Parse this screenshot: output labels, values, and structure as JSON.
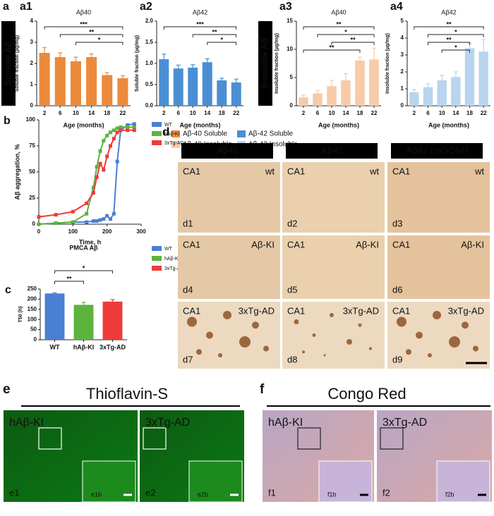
{
  "panel_a": {
    "label": "a",
    "soluble_label": "Soluble Aβ",
    "insoluble_label": "Insoluble Aβ",
    "legend": [
      {
        "name": "Aβ-40 Soluble",
        "color": "#ec8a3c"
      },
      {
        "name": "Aβ-42 Soluble",
        "color": "#4a8fd4"
      },
      {
        "name": "Aβ-40 Insoluble",
        "color": "#f7cba9"
      },
      {
        "name": "Aβ-42 Insoluble",
        "color": "#b8d4ee"
      }
    ]
  },
  "chart_data": [
    {
      "type": "bar",
      "panel": "a1",
      "title": "Aβ40",
      "ylabel": "Soluble fraction (µg/mg)",
      "xlabel": "Age (months)",
      "categories": [
        "2",
        "6",
        "10",
        "14",
        "18",
        "22"
      ],
      "values": [
        2.5,
        2.3,
        2.1,
        2.3,
        1.45,
        1.3
      ],
      "errors": [
        0.25,
        0.2,
        0.2,
        0.15,
        0.12,
        0.12
      ],
      "color": "#ec8a3c",
      "ylim": [
        0,
        4
      ],
      "yticks": [
        0,
        1,
        2,
        3,
        4
      ],
      "annotations": [
        {
          "text": "***",
          "between": [
            "2",
            "22"
          ]
        },
        {
          "text": "**",
          "between": [
            "6",
            "22"
          ]
        },
        {
          "text": "*",
          "between": [
            "10",
            "22"
          ]
        }
      ]
    },
    {
      "type": "bar",
      "panel": "a2",
      "title": "Aβ42",
      "ylabel": "Soluble fraction (µg/mg)",
      "xlabel": "Age (months)",
      "categories": [
        "2",
        "6",
        "10",
        "14",
        "18",
        "22"
      ],
      "values": [
        1.1,
        0.88,
        0.9,
        1.03,
        0.6,
        0.55
      ],
      "errors": [
        0.12,
        0.08,
        0.07,
        0.08,
        0.05,
        0.08
      ],
      "color": "#4a8fd4",
      "ylim": [
        0,
        2
      ],
      "yticks": [
        {
          "value": 0,
          "label": "0.0"
        },
        0.5,
        {
          "value": 1,
          "label": "1.0"
        },
        1.5,
        {
          "value": 2,
          "label": "2.0"
        }
      ],
      "annotations": [
        {
          "text": "***",
          "between": [
            "2",
            "22"
          ]
        },
        {
          "text": "**",
          "between": [
            "10",
            "22"
          ]
        },
        {
          "text": "*",
          "between": [
            "14",
            "22"
          ]
        }
      ]
    },
    {
      "type": "bar",
      "panel": "a3",
      "title": "Aβ40",
      "ylabel": "Insoluble fraction (µg/mg)",
      "xlabel": "Age (months)",
      "categories": [
        "2",
        "6",
        "10",
        "14",
        "18",
        "22"
      ],
      "values": [
        1.5,
        2.2,
        3.5,
        4.5,
        8,
        8.2
      ],
      "errors": [
        0.4,
        0.5,
        1,
        1.2,
        0.6,
        2
      ],
      "color": "#f7cba9",
      "ylim": [
        0,
        15
      ],
      "yticks": [
        0,
        5,
        10,
        15
      ],
      "annotations": [
        {
          "text": "**",
          "between": [
            "2",
            "22"
          ]
        },
        {
          "text": "*",
          "between": [
            "6",
            "22"
          ]
        },
        {
          "text": "**",
          "between": [
            "10",
            "22"
          ]
        },
        {
          "text": "**",
          "between": [
            "2",
            "18"
          ]
        }
      ]
    },
    {
      "type": "bar",
      "panel": "a4",
      "title": "Aβ42",
      "ylabel": "Insoluble fraction (µg/mg)",
      "xlabel": "Age (months)",
      "categories": [
        "2",
        "6",
        "10",
        "14",
        "18",
        "22"
      ],
      "values": [
        0.8,
        1.1,
        1.5,
        1.7,
        3.4,
        3.2
      ],
      "errors": [
        0.15,
        0.2,
        0.3,
        0.3,
        0.3,
        0.7
      ],
      "color": "#b8d4ee",
      "ylim": [
        0,
        5
      ],
      "yticks": [
        0,
        1,
        2,
        3,
        4,
        5
      ],
      "annotations": [
        {
          "text": "**",
          "between": [
            "2",
            "22"
          ]
        },
        {
          "text": "*",
          "between": [
            "6",
            "22"
          ]
        },
        {
          "text": "**",
          "between": [
            "6",
            "18"
          ]
        },
        {
          "text": "*",
          "between": [
            "10",
            "18"
          ]
        }
      ]
    },
    {
      "type": "line",
      "panel": "b",
      "xlabel": "Time, h",
      "ylabel": "Aβ aggregation, %",
      "x": [
        0,
        50,
        100,
        140,
        160,
        170,
        180,
        190,
        200,
        210,
        220,
        230,
        240,
        260,
        280
      ],
      "series": [
        {
          "name": "WT",
          "color": "#4a7fd4",
          "values": [
            0,
            1,
            2,
            2,
            3,
            3,
            4,
            5,
            8,
            5,
            10,
            60,
            90,
            95,
            96
          ]
        },
        {
          "name": "hAβ-KI",
          "color": "#5cb33e",
          "values": [
            0,
            1,
            2,
            10,
            35,
            55,
            70,
            80,
            85,
            88,
            90,
            92,
            93,
            93,
            93
          ]
        },
        {
          "name": "3xTg-AD",
          "color": "#ee3b3b",
          "values": [
            7,
            9,
            12,
            20,
            30,
            45,
            58,
            52,
            65,
            75,
            82,
            88,
            90,
            90,
            90
          ]
        }
      ],
      "xlim": [
        0,
        300
      ],
      "xticks": [
        0,
        100,
        200,
        300
      ],
      "ylim": [
        0,
        100
      ],
      "yticks": [
        0,
        25,
        50,
        75,
        100
      ]
    },
    {
      "type": "bar",
      "panel": "c",
      "title": "PMCA Aβ",
      "ylabel": "T50 (h)",
      "categories": [
        "WT",
        "hAβ-KI",
        "3xTg-AD"
      ],
      "values": [
        228,
        172,
        188
      ],
      "errors": [
        3,
        12,
        10
      ],
      "colors": [
        "#4a7fd4",
        "#5cb33e",
        "#ee3b3b"
      ],
      "ylim": [
        0,
        250
      ],
      "yticks": [
        0,
        50,
        100,
        150,
        200,
        250
      ],
      "annotations": [
        {
          "text": "*",
          "between": [
            "WT",
            "3xTg-AD"
          ]
        },
        {
          "text": "**",
          "between": [
            "WT",
            "hAβ-KI"
          ]
        }
      ]
    }
  ],
  "panel_d": {
    "label": "d",
    "headers": [
      "Aβ40",
      "Aβ42",
      "Aβ42 (mOC64)"
    ],
    "cells": [
      {
        "region": "CA1",
        "group": "wt",
        "id": "d1"
      },
      {
        "region": "CA1",
        "group": "wt",
        "id": "d2"
      },
      {
        "region": "CA1",
        "group": "wt",
        "id": "d3"
      },
      {
        "region": "CA1",
        "group": "Aβ-KI",
        "id": "d4"
      },
      {
        "region": "CA1",
        "group": "Aβ-KI",
        "id": "d5"
      },
      {
        "region": "CA1",
        "group": "Aβ-KI",
        "id": "d6"
      },
      {
        "region": "CA1",
        "group": "3xTg-AD",
        "id": "d7"
      },
      {
        "region": "CA1",
        "group": "3xTg-AD",
        "id": "d8"
      },
      {
        "region": "CA1",
        "group": "3xTg-AD",
        "id": "d9"
      }
    ]
  },
  "panel_e": {
    "label": "e",
    "title": "Thioflavin-S",
    "images": [
      {
        "group": "hAβ-KI",
        "id": "e1",
        "inset": "e1b"
      },
      {
        "group": "3xTg-AD",
        "id": "e2",
        "inset": "e2b"
      }
    ]
  },
  "panel_f": {
    "label": "f",
    "title": "Congo Red",
    "images": [
      {
        "group": "hAβ-KI",
        "id": "f1",
        "inset": "f1b"
      },
      {
        "group": "3xTg-AD",
        "id": "f2",
        "inset": "f2b"
      }
    ]
  }
}
